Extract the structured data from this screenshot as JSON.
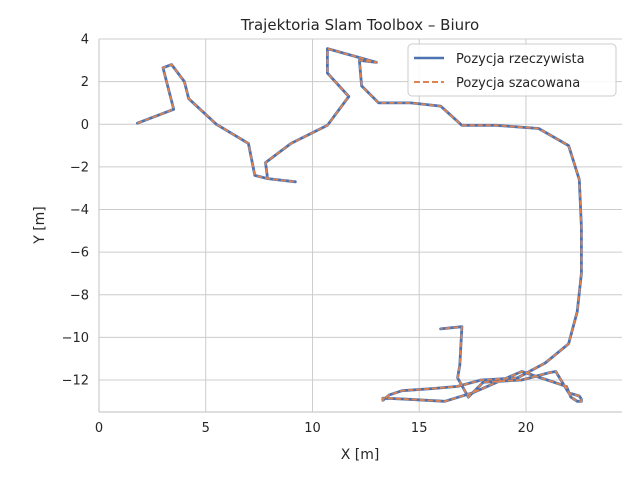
{
  "chart_data": {
    "type": "line",
    "title": "Trajektoria Slam Toolbox – Biuro",
    "xlabel": "X [m]",
    "ylabel": "Y [m]",
    "xlim": [
      0,
      24.5
    ],
    "ylim": [
      -13.5,
      4
    ],
    "xticks": [
      0,
      5,
      10,
      15,
      20
    ],
    "yticks": [
      4,
      2,
      0,
      -2,
      -4,
      -6,
      -8,
      -10,
      -12
    ],
    "grid": true,
    "legend_position": "upper-right",
    "series": [
      {
        "name": "Pozycja rzeczywista",
        "color": "#4c72b0",
        "style": "solid",
        "x": [
          1.8,
          3.5,
          3.0,
          3.4,
          4.0,
          4.2,
          5.5,
          7.0,
          7.3,
          7.9,
          9.2,
          7.9,
          7.8,
          9.0,
          10.7,
          11.7,
          10.7,
          10.7,
          13.0,
          12.2,
          12.3,
          13.1,
          14.6,
          16.0,
          17.0,
          18.6,
          20.6,
          22.0,
          22.5,
          22.6,
          22.6,
          22.4,
          22.0,
          20.9,
          19.6,
          17.9,
          16.8,
          15.6,
          14.2,
          13.6,
          13.3,
          13.3,
          14.4,
          16.2,
          17.5,
          19.8,
          21.0,
          21.9,
          22.1,
          22.4,
          22.6,
          22.6,
          22.5,
          22.0,
          21.4,
          21.1,
          19.8,
          18.0,
          17.3,
          16.8,
          16.9,
          17.0,
          16.0
        ],
        "y": [
          0.05,
          0.7,
          2.65,
          2.8,
          2.0,
          1.2,
          0.0,
          -0.9,
          -2.4,
          -2.55,
          -2.7,
          -2.55,
          -1.8,
          -0.9,
          -0.05,
          1.3,
          2.4,
          3.55,
          2.9,
          3.0,
          1.8,
          1.0,
          1.0,
          0.85,
          -0.05,
          -0.05,
          -0.2,
          -1.0,
          -2.6,
          -4.8,
          -7.0,
          -8.8,
          -10.3,
          -11.2,
          -11.9,
          -12.0,
          -12.3,
          -12.4,
          -12.5,
          -12.7,
          -12.95,
          -12.85,
          -12.9,
          -13.0,
          -12.6,
          -11.6,
          -12.0,
          -12.3,
          -12.8,
          -13.0,
          -13.0,
          -12.9,
          -12.75,
          -12.6,
          -11.6,
          -11.65,
          -12.0,
          -12.1,
          -12.8,
          -11.9,
          -11.3,
          -9.5,
          -9.6
        ],
        "note": ""
      },
      {
        "name": "Pozycja szacowana",
        "color": "#dd8452",
        "style": "dashed",
        "x": [],
        "y": []
      }
    ]
  }
}
